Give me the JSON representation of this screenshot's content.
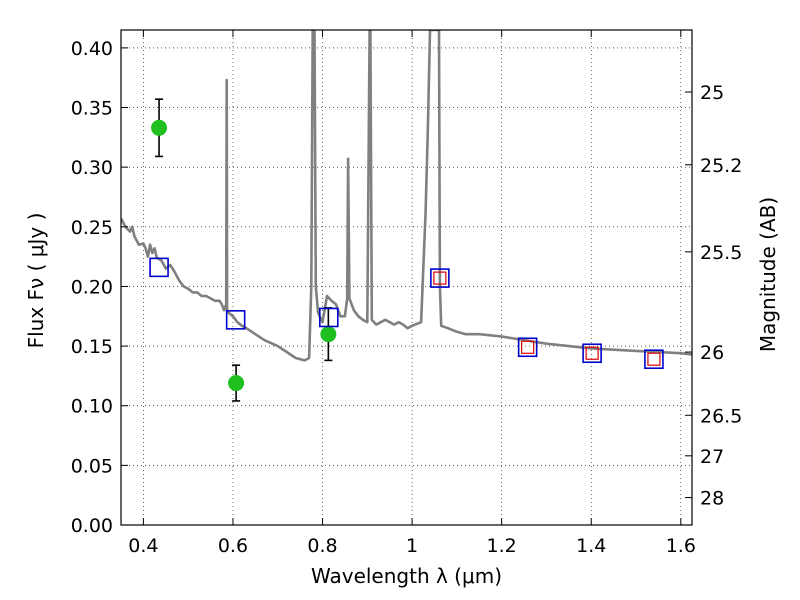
{
  "chart_data": {
    "type": "scatter",
    "title": "",
    "xlabel": "Wavelength  λ (μm)",
    "ylabel": "Flux  Fν  ( μJy )",
    "ylabel_right": "Magnitude (AB)",
    "xlim": [
      0.35,
      1.625
    ],
    "ylim": [
      0.0,
      0.415
    ],
    "grid": true,
    "grid_style": "dotted",
    "xticks": [
      0.4,
      0.6,
      0.8,
      1.0,
      1.2,
      1.4,
      1.6
    ],
    "xtick_labels": [
      "0.4",
      "0.6",
      "0.8",
      "1",
      "1.2",
      "1.4",
      "1.6"
    ],
    "yticks": [
      0.0,
      0.05,
      0.1,
      0.15,
      0.2,
      0.25,
      0.3,
      0.35,
      0.4
    ],
    "ytick_labels": [
      "0.00",
      "0.05",
      "0.10",
      "0.15",
      "0.20",
      "0.25",
      "0.30",
      "0.35",
      "0.40"
    ],
    "right_ticks": [
      {
        "label": "25",
        "flux": 0.363
      },
      {
        "label": "25.2",
        "flux": 0.302
      },
      {
        "label": "25.5",
        "flux": 0.229
      },
      {
        "label": "26",
        "flux": 0.145
      },
      {
        "label": "26.5",
        "flux": 0.092
      },
      {
        "label": "27",
        "flux": 0.058
      },
      {
        "label": "28",
        "flux": 0.023
      }
    ],
    "series": [
      {
        "type": "line",
        "color": "#808080",
        "x": [
          0.35,
          0.36,
          0.37,
          0.375,
          0.38,
          0.39,
          0.4,
          0.405,
          0.41,
          0.415,
          0.42,
          0.425,
          0.43,
          0.44,
          0.45,
          0.46,
          0.47,
          0.48,
          0.49,
          0.5,
          0.51,
          0.52,
          0.53,
          0.54,
          0.55,
          0.56,
          0.57,
          0.575,
          0.58,
          0.585,
          0.586,
          0.587,
          0.59,
          0.6,
          0.61,
          0.62,
          0.63,
          0.65,
          0.67,
          0.7,
          0.72,
          0.74,
          0.76,
          0.77,
          0.775,
          0.778,
          0.78,
          0.782,
          0.785,
          0.79,
          0.8,
          0.81,
          0.82,
          0.83,
          0.84,
          0.85,
          0.855,
          0.857,
          0.86,
          0.87,
          0.88,
          0.89,
          0.9,
          0.905,
          0.907,
          0.91,
          0.92,
          0.93,
          0.94,
          0.95,
          0.96,
          0.97,
          0.98,
          0.99,
          1.0,
          1.02,
          1.03,
          1.035,
          1.04,
          1.045,
          1.05,
          1.055,
          1.06,
          1.062,
          1.065,
          1.08,
          1.1,
          1.12,
          1.15,
          1.2,
          1.25,
          1.3,
          1.35,
          1.4,
          1.45,
          1.5,
          1.55,
          1.6,
          1.625
        ],
        "y": [
          0.257,
          0.25,
          0.246,
          0.25,
          0.242,
          0.235,
          0.236,
          0.232,
          0.225,
          0.235,
          0.228,
          0.232,
          0.224,
          0.222,
          0.215,
          0.218,
          0.212,
          0.205,
          0.2,
          0.198,
          0.195,
          0.195,
          0.192,
          0.192,
          0.19,
          0.188,
          0.188,
          0.185,
          0.18,
          0.185,
          0.373,
          0.18,
          0.178,
          0.175,
          0.17,
          0.167,
          0.165,
          0.16,
          0.155,
          0.15,
          0.145,
          0.14,
          0.138,
          0.14,
          0.2,
          0.415,
          0.415,
          0.415,
          0.2,
          0.178,
          0.17,
          0.192,
          0.188,
          0.185,
          0.175,
          0.175,
          0.19,
          0.307,
          0.19,
          0.18,
          0.175,
          0.172,
          0.17,
          0.415,
          0.415,
          0.172,
          0.168,
          0.17,
          0.172,
          0.17,
          0.168,
          0.17,
          0.168,
          0.165,
          0.167,
          0.17,
          0.26,
          0.33,
          0.415,
          0.415,
          0.415,
          0.415,
          0.415,
          0.2,
          0.167,
          0.165,
          0.162,
          0.16,
          0.16,
          0.158,
          0.155,
          0.152,
          0.15,
          0.148,
          0.147,
          0.146,
          0.145,
          0.144,
          0.143
        ]
      },
      {
        "type": "points",
        "marker": "circle",
        "color": "#1fbf1f",
        "x": [
          0.435,
          0.607,
          0.813
        ],
        "y": [
          0.333,
          0.119,
          0.16
        ],
        "yerr": [
          0.024,
          0.015,
          0.022
        ]
      },
      {
        "type": "points",
        "marker": "square",
        "color": "#0000cc",
        "x": [
          0.435,
          0.606,
          0.814,
          1.062,
          1.258,
          1.402,
          1.54
        ],
        "y": [
          0.216,
          0.172,
          0.174,
          0.207,
          0.149,
          0.144,
          0.139
        ]
      },
      {
        "type": "points",
        "marker": "small-square",
        "color": "#dd0000",
        "x": [
          1.062,
          1.258,
          1.402,
          1.54
        ],
        "y": [
          0.207,
          0.149,
          0.144,
          0.139
        ]
      }
    ]
  }
}
